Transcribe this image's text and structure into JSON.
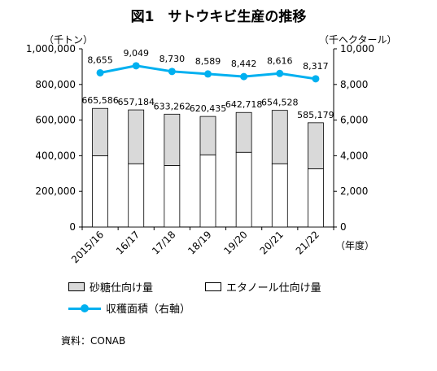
{
  "title": "図1　サトウキビ生産の推移",
  "left_unit": "（千トン）",
  "right_unit": "（千ヘクタール）",
  "x_unit": "（年度）",
  "source": "資料：CONAB",
  "chart_data": {
    "type": "bar",
    "categories": [
      "2015/16",
      "16/17",
      "17/18",
      "18/19",
      "19/20",
      "20/21",
      "21/22"
    ],
    "series": [
      {
        "name": "砂糖仕向け量",
        "type": "bar",
        "stack": "production",
        "axis": "left",
        "color": "#d9d9d9",
        "values": [
          265586,
          302184,
          288262,
          215435,
          223718,
          299528,
          258179
        ]
      },
      {
        "name": "エタノール仕向け量",
        "type": "bar",
        "stack": "production",
        "axis": "left",
        "color": "#ffffff",
        "values": [
          400000,
          355000,
          345000,
          405000,
          419000,
          355000,
          327000
        ]
      },
      {
        "name": "収穫面積（右軸）",
        "type": "line",
        "axis": "right",
        "color": "#00b0f0",
        "values": [
          8655,
          9049,
          8730,
          8589,
          8442,
          8616,
          8317
        ]
      }
    ],
    "totals": [
      665586,
      657184,
      633262,
      620435,
      642718,
      654528,
      585179
    ],
    "total_labels": [
      "665,586",
      "657,184",
      "633,262",
      "620,435",
      "642,718",
      "654,528",
      "585,179"
    ],
    "line_labels": [
      "8,655",
      "9,049",
      "8,730",
      "8,589",
      "8,442",
      "8,616",
      "8,317"
    ],
    "ylim_left": [
      0,
      1000000
    ],
    "yticks_left": [
      "0",
      "200,000",
      "400,000",
      "600,000",
      "800,000",
      "1,000,000"
    ],
    "ylim_right": [
      0,
      10000
    ],
    "yticks_right": [
      "0",
      "2,000",
      "4,000",
      "6,000",
      "8,000",
      "10,000"
    ],
    "grid": false,
    "legend_position": "bottom"
  }
}
